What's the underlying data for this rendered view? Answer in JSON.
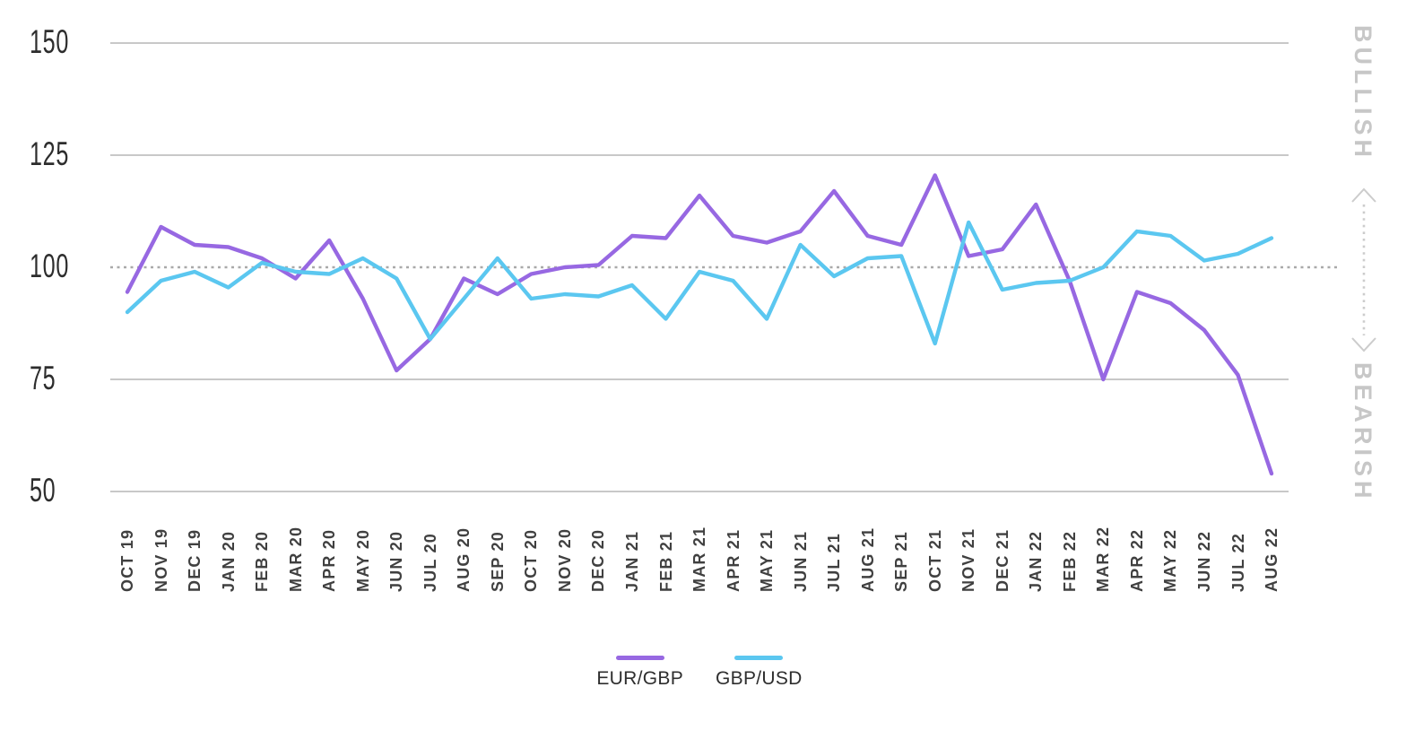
{
  "chart_data": {
    "type": "line",
    "title": "",
    "x_categories": [
      "OCT 19",
      "NOV 19",
      "DEC 19",
      "JAN 20",
      "FEB 20",
      "MAR 20",
      "APR 20",
      "MAY 20",
      "JUN 20",
      "JUL 20",
      "AUG 20",
      "SEP 20",
      "OCT 20",
      "NOV 20",
      "DEC 20",
      "JAN 21",
      "FEB 21",
      "MAR 21",
      "APR 21",
      "MAY 21",
      "JUN 21",
      "JUL 21",
      "AUG 21",
      "SEP 21",
      "OCT 21",
      "NOV 21",
      "DEC 21",
      "JAN 22",
      "FEB 22",
      "MAR 22",
      "APR 22",
      "MAY 22",
      "JUN 22",
      "JUL 22",
      "AUG 22"
    ],
    "series": [
      {
        "name": "EUR/GBP",
        "color": "#9768E2",
        "values": [
          94.5,
          109,
          105,
          104.5,
          102,
          97.5,
          106,
          93,
          77,
          84,
          97.5,
          94,
          98.5,
          100,
          100.5,
          107,
          106.5,
          116,
          107,
          105.5,
          108,
          117,
          107,
          105,
          120.5,
          102.5,
          104,
          114,
          97,
          75,
          94.5,
          92,
          86,
          76,
          54
        ]
      },
      {
        "name": "GBP/USD",
        "color": "#5BC7F0",
        "values": [
          90,
          97,
          99,
          95.5,
          101,
          99,
          98.5,
          102,
          97.5,
          84,
          93,
          102,
          93,
          94,
          93.5,
          96,
          88.5,
          99,
          97,
          88.5,
          105,
          98,
          102,
          102.5,
          83,
          110,
          95,
          96.5,
          97,
          100,
          108,
          107,
          101.5,
          103,
          106.5
        ]
      }
    ],
    "y_ticks": [
      150,
      125,
      100,
      75,
      50
    ],
    "ylim": [
      50,
      150
    ],
    "baseline": 100,
    "grid": "horizontal",
    "legend_position": "bottom"
  },
  "sentiment": {
    "top": "BULLISH",
    "bottom": "BEARISH"
  },
  "colors": {
    "gridline": "#c8c8c8",
    "baseline_dotted": "#aaaaaa",
    "axis_text": "#404040",
    "ytick_text": "#2d2d2d",
    "sentiment_text": "#c7c7c7",
    "arrow": "#cccccc",
    "background": "#ffffff"
  }
}
